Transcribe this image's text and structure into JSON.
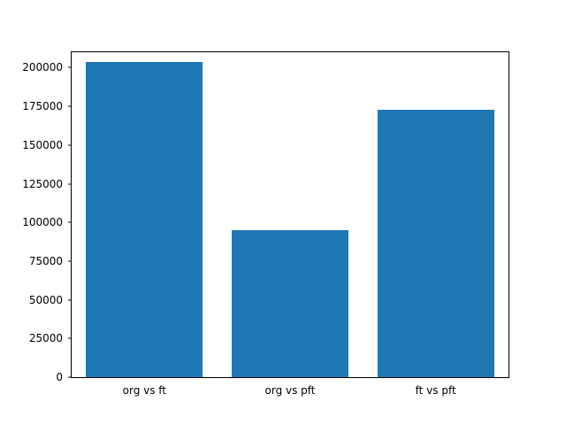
{
  "chart_data": {
    "type": "bar",
    "categories": [
      "org vs ft",
      "org vs pft",
      "ft vs pft"
    ],
    "values": [
      204000,
      95000,
      173000
    ],
    "title": "",
    "xlabel": "",
    "ylabel": "",
    "ylim": [
      0,
      210000
    ],
    "yticks": [
      0,
      25000,
      50000,
      75000,
      100000,
      125000,
      150000,
      175000,
      200000
    ],
    "bar_color": "#1f77b4",
    "bar_width_fraction": 0.8,
    "grid": false,
    "legend": null
  }
}
